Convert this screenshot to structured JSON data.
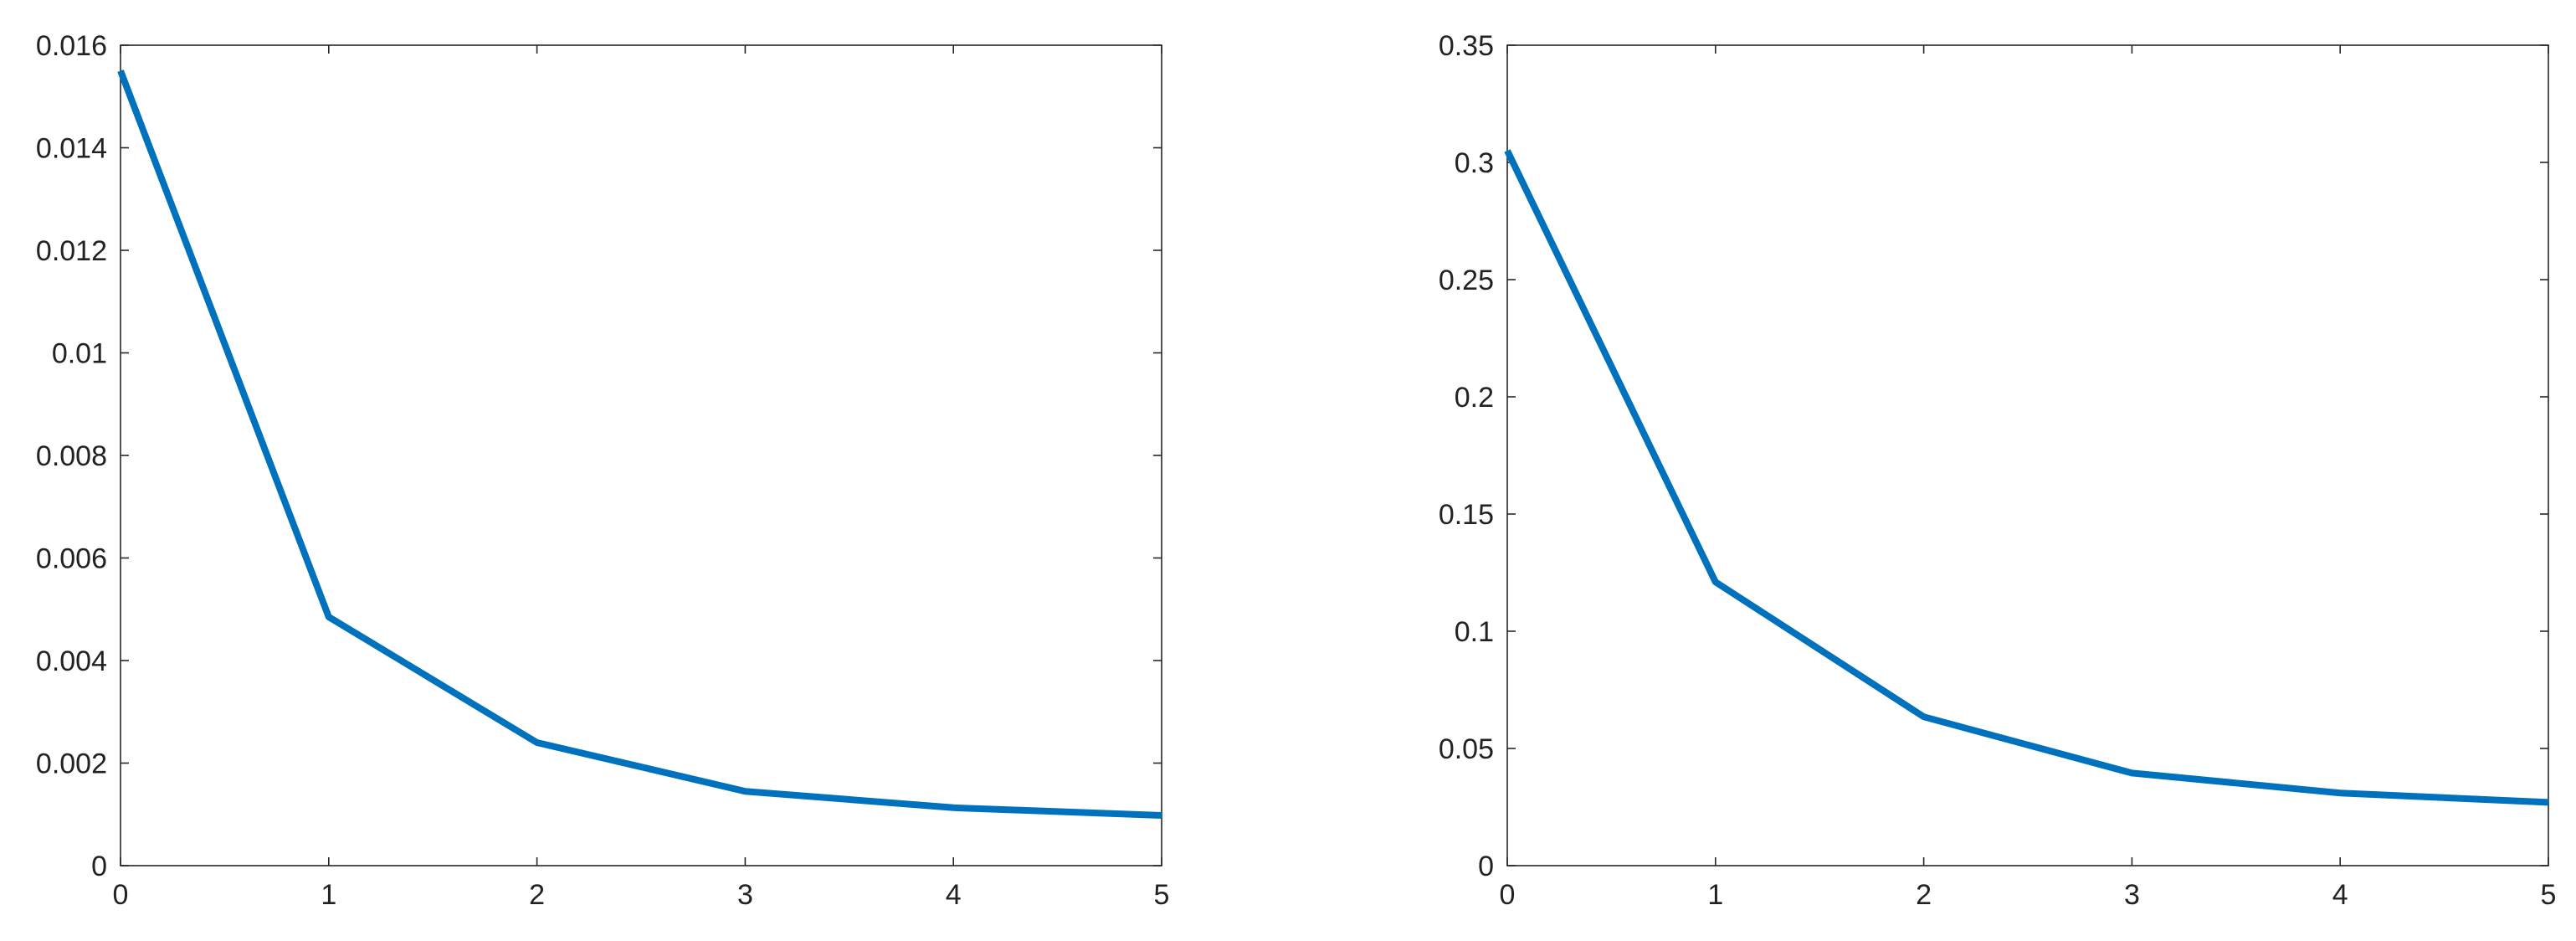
{
  "chart_data": [
    {
      "type": "line",
      "title": "",
      "xlabel": "",
      "ylabel": "",
      "xlim": [
        0,
        5
      ],
      "ylim": [
        0,
        0.016
      ],
      "xticks": [
        "0",
        "1",
        "2",
        "3",
        "4",
        "5"
      ],
      "yticks": [
        "0",
        "0.002",
        "0.004",
        "0.006",
        "0.008",
        "0.01",
        "0.012",
        "0.014",
        "0.016"
      ],
      "grid": false,
      "series": [
        {
          "color": "#0072BD",
          "x": [
            0,
            1,
            2,
            3,
            4,
            5
          ],
          "y": [
            0.0155,
            0.00485,
            0.0024,
            0.00145,
            0.00113,
            0.00098
          ]
        }
      ]
    },
    {
      "type": "line",
      "title": "",
      "xlabel": "",
      "ylabel": "",
      "xlim": [
        0,
        5
      ],
      "ylim": [
        0,
        0.35
      ],
      "xticks": [
        "0",
        "1",
        "2",
        "3",
        "4",
        "5"
      ],
      "yticks": [
        "0",
        "0.05",
        "0.1",
        "0.15",
        "0.2",
        "0.25",
        "0.3",
        "0.35"
      ],
      "grid": false,
      "series": [
        {
          "color": "#0072BD",
          "x": [
            0,
            1,
            2,
            3,
            4,
            5
          ],
          "y": [
            0.305,
            0.121,
            0.0635,
            0.0395,
            0.031,
            0.027
          ]
        }
      ]
    }
  ]
}
